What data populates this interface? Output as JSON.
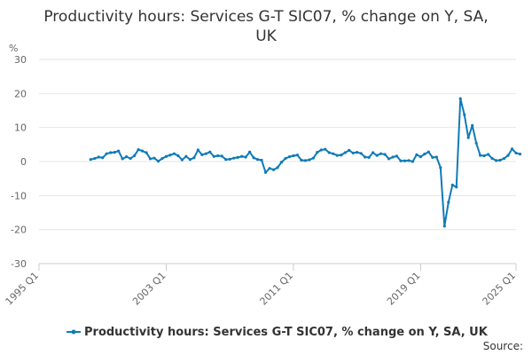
{
  "chart_data": {
    "type": "line",
    "title_line1": "Productivity hours: Services G-T SIC07, % change on Y, SA,",
    "title_line2": "UK",
    "y_unit": "%",
    "xlabel": "",
    "ylabel": "",
    "ylim": [
      -30,
      30
    ],
    "y_ticks": [
      "30",
      "20",
      "10",
      "0",
      "-10",
      "-20",
      "-30"
    ],
    "xlim": [
      "1995 Q1",
      "2025 Q1"
    ],
    "x_ticks": [
      "1995 Q1",
      "2003 Q1",
      "2011 Q1",
      "2019 Q1",
      "2025 Q1"
    ],
    "grid": true,
    "legend_position": "bottom",
    "source": "Source:",
    "series": [
      {
        "name": "Productivity hours: Services G-T SIC07, % change on Y, SA, UK",
        "color": "#0f7bb8",
        "x": [
          "1998 Q2",
          "1998 Q3",
          "1998 Q4",
          "1999 Q1",
          "1999 Q2",
          "1999 Q3",
          "1999 Q4",
          "2000 Q1",
          "2000 Q2",
          "2000 Q3",
          "2000 Q4",
          "2001 Q1",
          "2001 Q2",
          "2001 Q3",
          "2001 Q4",
          "2002 Q1",
          "2002 Q2",
          "2002 Q3",
          "2002 Q4",
          "2003 Q1",
          "2003 Q2",
          "2003 Q3",
          "2003 Q4",
          "2004 Q1",
          "2004 Q2",
          "2004 Q3",
          "2004 Q4",
          "2005 Q1",
          "2005 Q2",
          "2005 Q3",
          "2005 Q4",
          "2006 Q1",
          "2006 Q2",
          "2006 Q3",
          "2006 Q4",
          "2007 Q1",
          "2007 Q2",
          "2007 Q3",
          "2007 Q4",
          "2008 Q1",
          "2008 Q2",
          "2008 Q3",
          "2008 Q4",
          "2009 Q1",
          "2009 Q2",
          "2009 Q3",
          "2009 Q4",
          "2010 Q1",
          "2010 Q2",
          "2010 Q3",
          "2010 Q4",
          "2011 Q1",
          "2011 Q2",
          "2011 Q3",
          "2011 Q4",
          "2012 Q1",
          "2012 Q2",
          "2012 Q3",
          "2012 Q4",
          "2013 Q1",
          "2013 Q2",
          "2013 Q3",
          "2013 Q4",
          "2014 Q1",
          "2014 Q2",
          "2014 Q3",
          "2014 Q4",
          "2015 Q1",
          "2015 Q2",
          "2015 Q3",
          "2015 Q4",
          "2016 Q1",
          "2016 Q2",
          "2016 Q3",
          "2016 Q4",
          "2017 Q1",
          "2017 Q2",
          "2017 Q3",
          "2017 Q4",
          "2018 Q1",
          "2018 Q2",
          "2018 Q3",
          "2018 Q4",
          "2019 Q1",
          "2019 Q2",
          "2019 Q3",
          "2019 Q4",
          "2020 Q1",
          "2020 Q2",
          "2020 Q3",
          "2020 Q4",
          "2021 Q1",
          "2021 Q2",
          "2021 Q3",
          "2021 Q4",
          "2022 Q1",
          "2022 Q2",
          "2022 Q3",
          "2022 Q4",
          "2023 Q1",
          "2023 Q2",
          "2023 Q3",
          "2023 Q4",
          "2024 Q1",
          "2024 Q2",
          "2024 Q3",
          "2024 Q4",
          "2025 Q1",
          "2025 Q2"
        ],
        "values": [
          0.6,
          0.9,
          1.3,
          1.1,
          2.3,
          2.6,
          2.7,
          3.1,
          0.8,
          1.4,
          0.9,
          1.7,
          3.5,
          3.1,
          2.6,
          0.8,
          1.0,
          0.1,
          0.9,
          1.5,
          1.9,
          2.3,
          1.7,
          0.5,
          1.5,
          0.6,
          1.1,
          3.4,
          2.0,
          2.3,
          2.8,
          1.5,
          1.7,
          1.6,
          0.6,
          0.7,
          1.0,
          1.2,
          1.5,
          1.3,
          2.8,
          1.1,
          0.6,
          0.4,
          -3.2,
          -2.0,
          -2.4,
          -1.8,
          -0.2,
          0.9,
          1.4,
          1.7,
          1.9,
          0.4,
          0.3,
          0.5,
          1.0,
          2.7,
          3.4,
          3.6,
          2.6,
          2.3,
          1.8,
          1.9,
          2.6,
          3.3,
          2.5,
          2.7,
          2.4,
          1.3,
          1.2,
          2.6,
          1.8,
          2.3,
          2.1,
          0.8,
          1.3,
          1.6,
          0.2,
          0.2,
          0.3,
          0.0,
          2.0,
          1.4,
          2.2,
          2.8,
          1.2,
          1.3,
          -1.8,
          -19.0,
          -12.0,
          -6.9,
          -7.5,
          18.5,
          13.8,
          7.0,
          10.6,
          5.4,
          1.8,
          1.7,
          2.1,
          0.9,
          0.3,
          0.4,
          0.9,
          1.8,
          3.7,
          2.5,
          2.2
        ]
      }
    ]
  }
}
